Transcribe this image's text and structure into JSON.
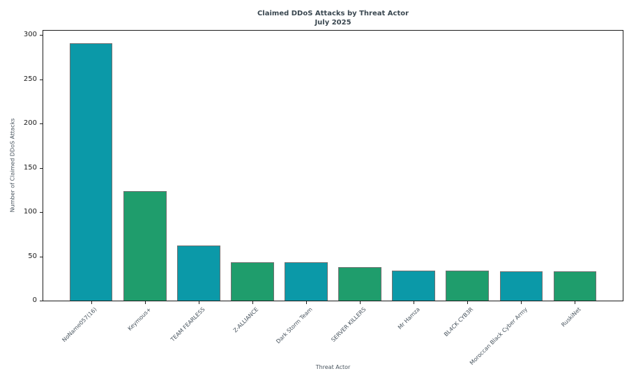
{
  "chart_data": {
    "type": "bar",
    "title": "Claimed DDoS Attacks by Threat Actor",
    "subtitle": "July 2025",
    "xlabel": "Threat Actor",
    "ylabel": "Number of Claimed DDoS Attacks",
    "categories": [
      "NoName057(16)",
      "Keymous+",
      "TEAM FEARLESS",
      "Z-ALLIANCE",
      "Dark Storm Team",
      "SERVER KILLERS",
      "Mr Hamza",
      "BL4CK CYB3R",
      "Moroccan Black Cyber Army",
      "RuskiNet"
    ],
    "values": [
      291,
      124,
      62,
      43,
      43,
      38,
      34,
      34,
      33,
      33
    ],
    "colors": [
      "#0b99a8",
      "#1f9d6c",
      "#0b99a8",
      "#1f9d6c",
      "#0b99a8",
      "#1f9d6c",
      "#0b99a8",
      "#1f9d6c",
      "#0b99a8",
      "#1f9d6c"
    ],
    "bar_edge_color": "#707070",
    "yticks": [
      0,
      50,
      100,
      150,
      200,
      250,
      300
    ],
    "ylim": [
      0,
      305
    ],
    "xtick_rotation": 45,
    "grid": false,
    "legend": "none"
  }
}
